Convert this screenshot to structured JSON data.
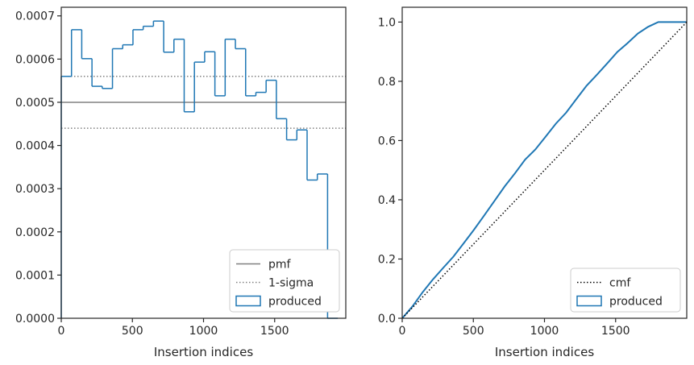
{
  "chart_data": [
    {
      "type": "histogram",
      "xlabel": "Insertion indices",
      "ylabel": "",
      "xlim": [
        0,
        2000
      ],
      "ylim": [
        0,
        0.00072
      ],
      "xticks": [
        0,
        500,
        1000,
        1500
      ],
      "xtick_labels": [
        "0",
        "500",
        "1000",
        "1500"
      ],
      "yticks": [
        0,
        0.0001,
        0.0002,
        0.0003,
        0.0004,
        0.0005,
        0.0006,
        0.0007
      ],
      "ytick_labels": [
        "0.0000",
        "0.0001",
        "0.0002",
        "0.0003",
        "0.0004",
        "0.0005",
        "0.0006",
        "0.0007"
      ],
      "bin_width": 72,
      "bin_start": 0,
      "bin_values": [
        0.00056,
        0.000668,
        0.000601,
        0.000537,
        0.000532,
        0.000624,
        0.000633,
        0.000668,
        0.000676,
        0.000688,
        0.000616,
        0.000646,
        0.000478,
        0.000593,
        0.000617,
        0.000515,
        0.000646,
        0.000624,
        0.000515,
        0.000523,
        0.000551,
        0.000462,
        0.000413,
        0.000436,
        0.00032,
        0.000334,
        0.0
      ],
      "reference_lines": [
        {
          "name": "pmf",
          "y": 0.0005,
          "style": "solid",
          "color": "#808080"
        },
        {
          "name": "1-sigma",
          "y": 0.00056,
          "style": "dotted",
          "color": "#808080"
        },
        {
          "name": "1-sigma",
          "y": 0.00044,
          "style": "dotted",
          "color": "#808080"
        }
      ],
      "legend": {
        "placement": "lower-right",
        "entries": [
          {
            "label": "pmf",
            "style": "solid-line",
            "color": "#808080"
          },
          {
            "label": "1-sigma",
            "style": "dotted-line",
            "color": "#808080"
          },
          {
            "label": "produced",
            "style": "box",
            "color": "#1f77b4"
          }
        ]
      },
      "series_color": "#1f77b4",
      "grid": false
    },
    {
      "type": "line",
      "xlabel": "Insertion indices",
      "ylabel": "",
      "xlim": [
        0,
        2000
      ],
      "ylim": [
        0,
        1.05
      ],
      "xticks": [
        0,
        500,
        1000,
        1500
      ],
      "xtick_labels": [
        "0",
        "500",
        "1000",
        "1500"
      ],
      "yticks": [
        0,
        0.2,
        0.4,
        0.6,
        0.8,
        1.0
      ],
      "ytick_labels": [
        "0.0",
        "0.2",
        "0.4",
        "0.6",
        "0.8",
        "1.0"
      ],
      "series": [
        {
          "name": "produced",
          "style": "solid",
          "color": "#1f77b4",
          "x": [
            0,
            72,
            144,
            216,
            288,
            360,
            432,
            504,
            576,
            648,
            720,
            792,
            864,
            936,
            1008,
            1080,
            1152,
            1224,
            1296,
            1368,
            1440,
            1512,
            1584,
            1656,
            1728,
            1800,
            1872,
            1944,
            2000
          ],
          "y": [
            0,
            0.04,
            0.088,
            0.131,
            0.17,
            0.208,
            0.253,
            0.299,
            0.347,
            0.396,
            0.445,
            0.489,
            0.536,
            0.57,
            0.613,
            0.657,
            0.694,
            0.74,
            0.785,
            0.822,
            0.86,
            0.899,
            0.929,
            0.961,
            0.984,
            1.0,
            1.0,
            1.0,
            1.0
          ]
        },
        {
          "name": "cmf",
          "style": "dotted",
          "color": "#000000",
          "x": [
            0,
            2000
          ],
          "y": [
            0,
            1.0
          ]
        }
      ],
      "legend": {
        "placement": "lower-right",
        "entries": [
          {
            "label": "cmf",
            "style": "dotted-line",
            "color": "#000000"
          },
          {
            "label": "produced",
            "style": "box",
            "color": "#1f77b4"
          }
        ]
      },
      "grid": false
    }
  ]
}
